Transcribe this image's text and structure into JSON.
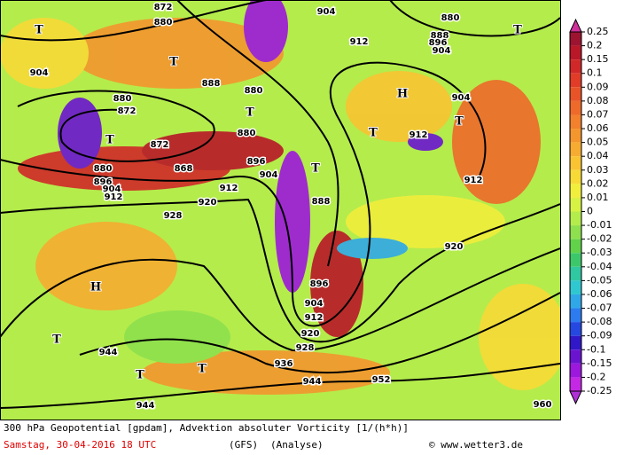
{
  "map": {
    "footer": {
      "line1": "300 hPa Geopotential [gpdam], Advektion absoluter Vorticity [1/(h*h)]",
      "date": "Samstag, 30-04-2016   18 UTC",
      "model": "(GFS)",
      "run": "(Analyse)",
      "credit": "© www.wetter3.de"
    },
    "contour_labels": [
      "872",
      "880",
      "904",
      "880",
      "888",
      "896",
      "904",
      "912",
      "904",
      "888",
      "880",
      "880",
      "872",
      "904",
      "880",
      "872",
      "912",
      "880",
      "868",
      "896",
      "904",
      "896",
      "904",
      "912",
      "912",
      "912",
      "920",
      "928",
      "888",
      "920",
      "896",
      "904",
      "912",
      "920",
      "928",
      "936",
      "944",
      "944",
      "952",
      "944",
      "960"
    ],
    "centers": [
      "T",
      "T",
      "T",
      "H",
      "T",
      "T",
      "T",
      "T",
      "T",
      "H",
      "T",
      "T",
      "T"
    ]
  },
  "colorbar": {
    "ticks": [
      0.25,
      0.2,
      0.15,
      0.1,
      0.09,
      0.08,
      0.07,
      0.06,
      0.05,
      0.04,
      0.03,
      0.02,
      0.01,
      0,
      -0.01,
      -0.02,
      -0.03,
      -0.04,
      -0.05,
      -0.06,
      -0.07,
      -0.08,
      -0.09,
      -0.1,
      -0.15,
      -0.2,
      -0.25
    ],
    "colors": [
      "#d0309a",
      "#9c1430",
      "#b81828",
      "#d02828",
      "#e03c28",
      "#e85428",
      "#ee6a2a",
      "#f2802c",
      "#f4962e",
      "#f6ac30",
      "#f8c432",
      "#f8da36",
      "#f2ee3c",
      "#d8f244",
      "#b4ec4c",
      "#8ee04e",
      "#62d24a",
      "#3cc86a",
      "#30c8a0",
      "#30c8d0",
      "#30a8e8",
      "#2c7cf0",
      "#2448e0",
      "#3018c8",
      "#6a14d0",
      "#9c18dc",
      "#c428e4",
      "#b030d8"
    ]
  }
}
